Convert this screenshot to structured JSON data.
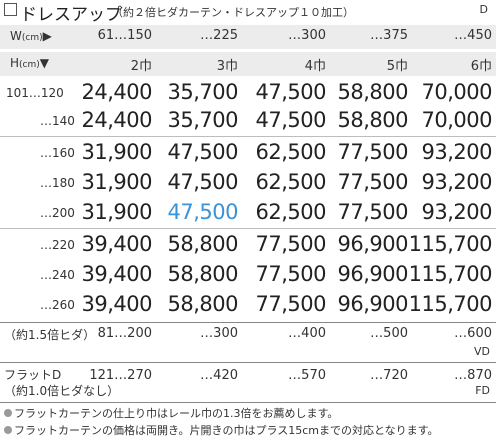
{
  "title": {
    "main": "ドレスアップ",
    "sub": "（約２倍ヒダカーテン・ドレスアップ１０加工）",
    "code": "D"
  },
  "header": {
    "width_label": "W",
    "width_unit": "(cm)",
    "width_arrow": "▶",
    "height_label": "H",
    "height_unit": "(cm)",
    "height_arrow": "▼",
    "width_ranges": [
      "61…150",
      "…225",
      "…300",
      "…375",
      "…450"
    ],
    "panel_widths": [
      "2巾",
      "3巾",
      "4巾",
      "5巾",
      "6巾"
    ]
  },
  "rows": [
    {
      "label": "101…120",
      "prices": [
        "24,400",
        "35,700",
        "47,500",
        "58,800",
        "70,000"
      ]
    },
    {
      "label": "…140",
      "prices": [
        "24,400",
        "35,700",
        "47,500",
        "58,800",
        "70,000"
      ]
    },
    {
      "label": "…160",
      "prices": [
        "31,900",
        "47,500",
        "62,500",
        "77,500",
        "93,200"
      ]
    },
    {
      "label": "…180",
      "prices": [
        "31,900",
        "47,500",
        "62,500",
        "77,500",
        "93,200"
      ]
    },
    {
      "label": "…200",
      "prices": [
        "31,900",
        "47,500",
        "62,500",
        "77,500",
        "93,200"
      ]
    },
    {
      "label": "…220",
      "prices": [
        "39,400",
        "58,800",
        "77,500",
        "96,900",
        "115,700"
      ]
    },
    {
      "label": "…240",
      "prices": [
        "39,400",
        "58,800",
        "77,500",
        "96,900",
        "115,700"
      ]
    },
    {
      "label": "…260",
      "prices": [
        "39,400",
        "58,800",
        "77,500",
        "96,900",
        "115,700"
      ]
    }
  ],
  "highlight": {
    "row": 4,
    "col": 1,
    "color": "#3a93d6"
  },
  "vd": {
    "label": "（約1.5倍ヒダ）",
    "ranges": [
      "81…200",
      "…300",
      "…400",
      "…500",
      "…600"
    ],
    "code": "VD"
  },
  "fd": {
    "label1": "フラットD",
    "label2": "（約1.0倍ヒダなし）",
    "ranges": [
      "121…270",
      "…420",
      "…570",
      "…720",
      "…870"
    ],
    "code": "FD"
  },
  "notes": [
    "フラットカーテンの仕上り巾はレール巾の1.3倍をお薦めします。",
    "フラットカーテンの価格は両開き。片開きの巾はプラス15cmまでの対応となります。"
  ]
}
